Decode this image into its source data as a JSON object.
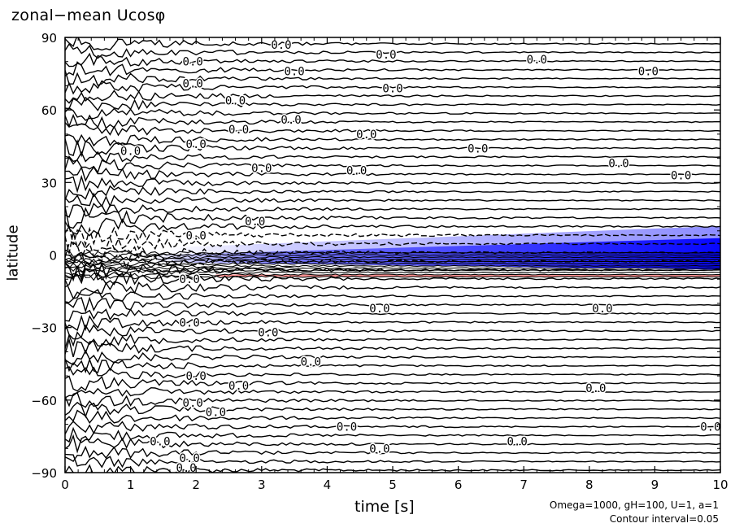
{
  "chart_data": {
    "type": "contour",
    "title": "zonal−mean Ucosφ",
    "xlabel": "time [s]",
    "ylabel": "latitude",
    "xlim": [
      0,
      10
    ],
    "ylim": [
      -90,
      90
    ],
    "x_ticks": [
      "0",
      "1",
      "2",
      "3",
      "4",
      "5",
      "6",
      "7",
      "8",
      "9",
      "10"
    ],
    "y_ticks": [
      "90",
      "60",
      "30",
      "0",
      "−30",
      "−60",
      "−90"
    ],
    "contour_label": "0.0",
    "notes": [
      "Omega=1000, gH=100, U=1, a=1",
      "Contour interval=0.05"
    ],
    "shading": {
      "negative_color": "#0000ff",
      "positive_color": "#ff9090",
      "negative_band_lat": [
        -5,
        5
      ]
    },
    "contour_label_positions": [
      {
        "t": 3.3,
        "lat": 87
      },
      {
        "t": 4.9,
        "lat": 83
      },
      {
        "t": 7.2,
        "lat": 81
      },
      {
        "t": 1.95,
        "lat": 80
      },
      {
        "t": 3.5,
        "lat": 76
      },
      {
        "t": 8.9,
        "lat": 76
      },
      {
        "t": 1.95,
        "lat": 71
      },
      {
        "t": 5.0,
        "lat": 69
      },
      {
        "t": 2.6,
        "lat": 64
      },
      {
        "t": 3.45,
        "lat": 56
      },
      {
        "t": 2.65,
        "lat": 52
      },
      {
        "t": 4.6,
        "lat": 50
      },
      {
        "t": 1.0,
        "lat": 43
      },
      {
        "t": 2.0,
        "lat": 46
      },
      {
        "t": 6.3,
        "lat": 44
      },
      {
        "t": 3.0,
        "lat": 36
      },
      {
        "t": 4.45,
        "lat": 35
      },
      {
        "t": 8.45,
        "lat": 38
      },
      {
        "t": 9.4,
        "lat": 33
      },
      {
        "t": 2.9,
        "lat": 14
      },
      {
        "t": 2.0,
        "lat": 8
      },
      {
        "t": 1.9,
        "lat": -10
      },
      {
        "t": 4.8,
        "lat": -22
      },
      {
        "t": 8.2,
        "lat": -22
      },
      {
        "t": 1.9,
        "lat": -28
      },
      {
        "t": 3.1,
        "lat": -32
      },
      {
        "t": 2.0,
        "lat": -50
      },
      {
        "t": 3.75,
        "lat": -44
      },
      {
        "t": 2.65,
        "lat": -54
      },
      {
        "t": 8.1,
        "lat": -55
      },
      {
        "t": 1.95,
        "lat": -61
      },
      {
        "t": 2.3,
        "lat": -65
      },
      {
        "t": 4.3,
        "lat": -71
      },
      {
        "t": 9.85,
        "lat": -71
      },
      {
        "t": 1.45,
        "lat": -77
      },
      {
        "t": 6.9,
        "lat": -77
      },
      {
        "t": 4.8,
        "lat": -80
      },
      {
        "t": 1.9,
        "lat": -84
      },
      {
        "t": 1.85,
        "lat": -88
      }
    ]
  }
}
